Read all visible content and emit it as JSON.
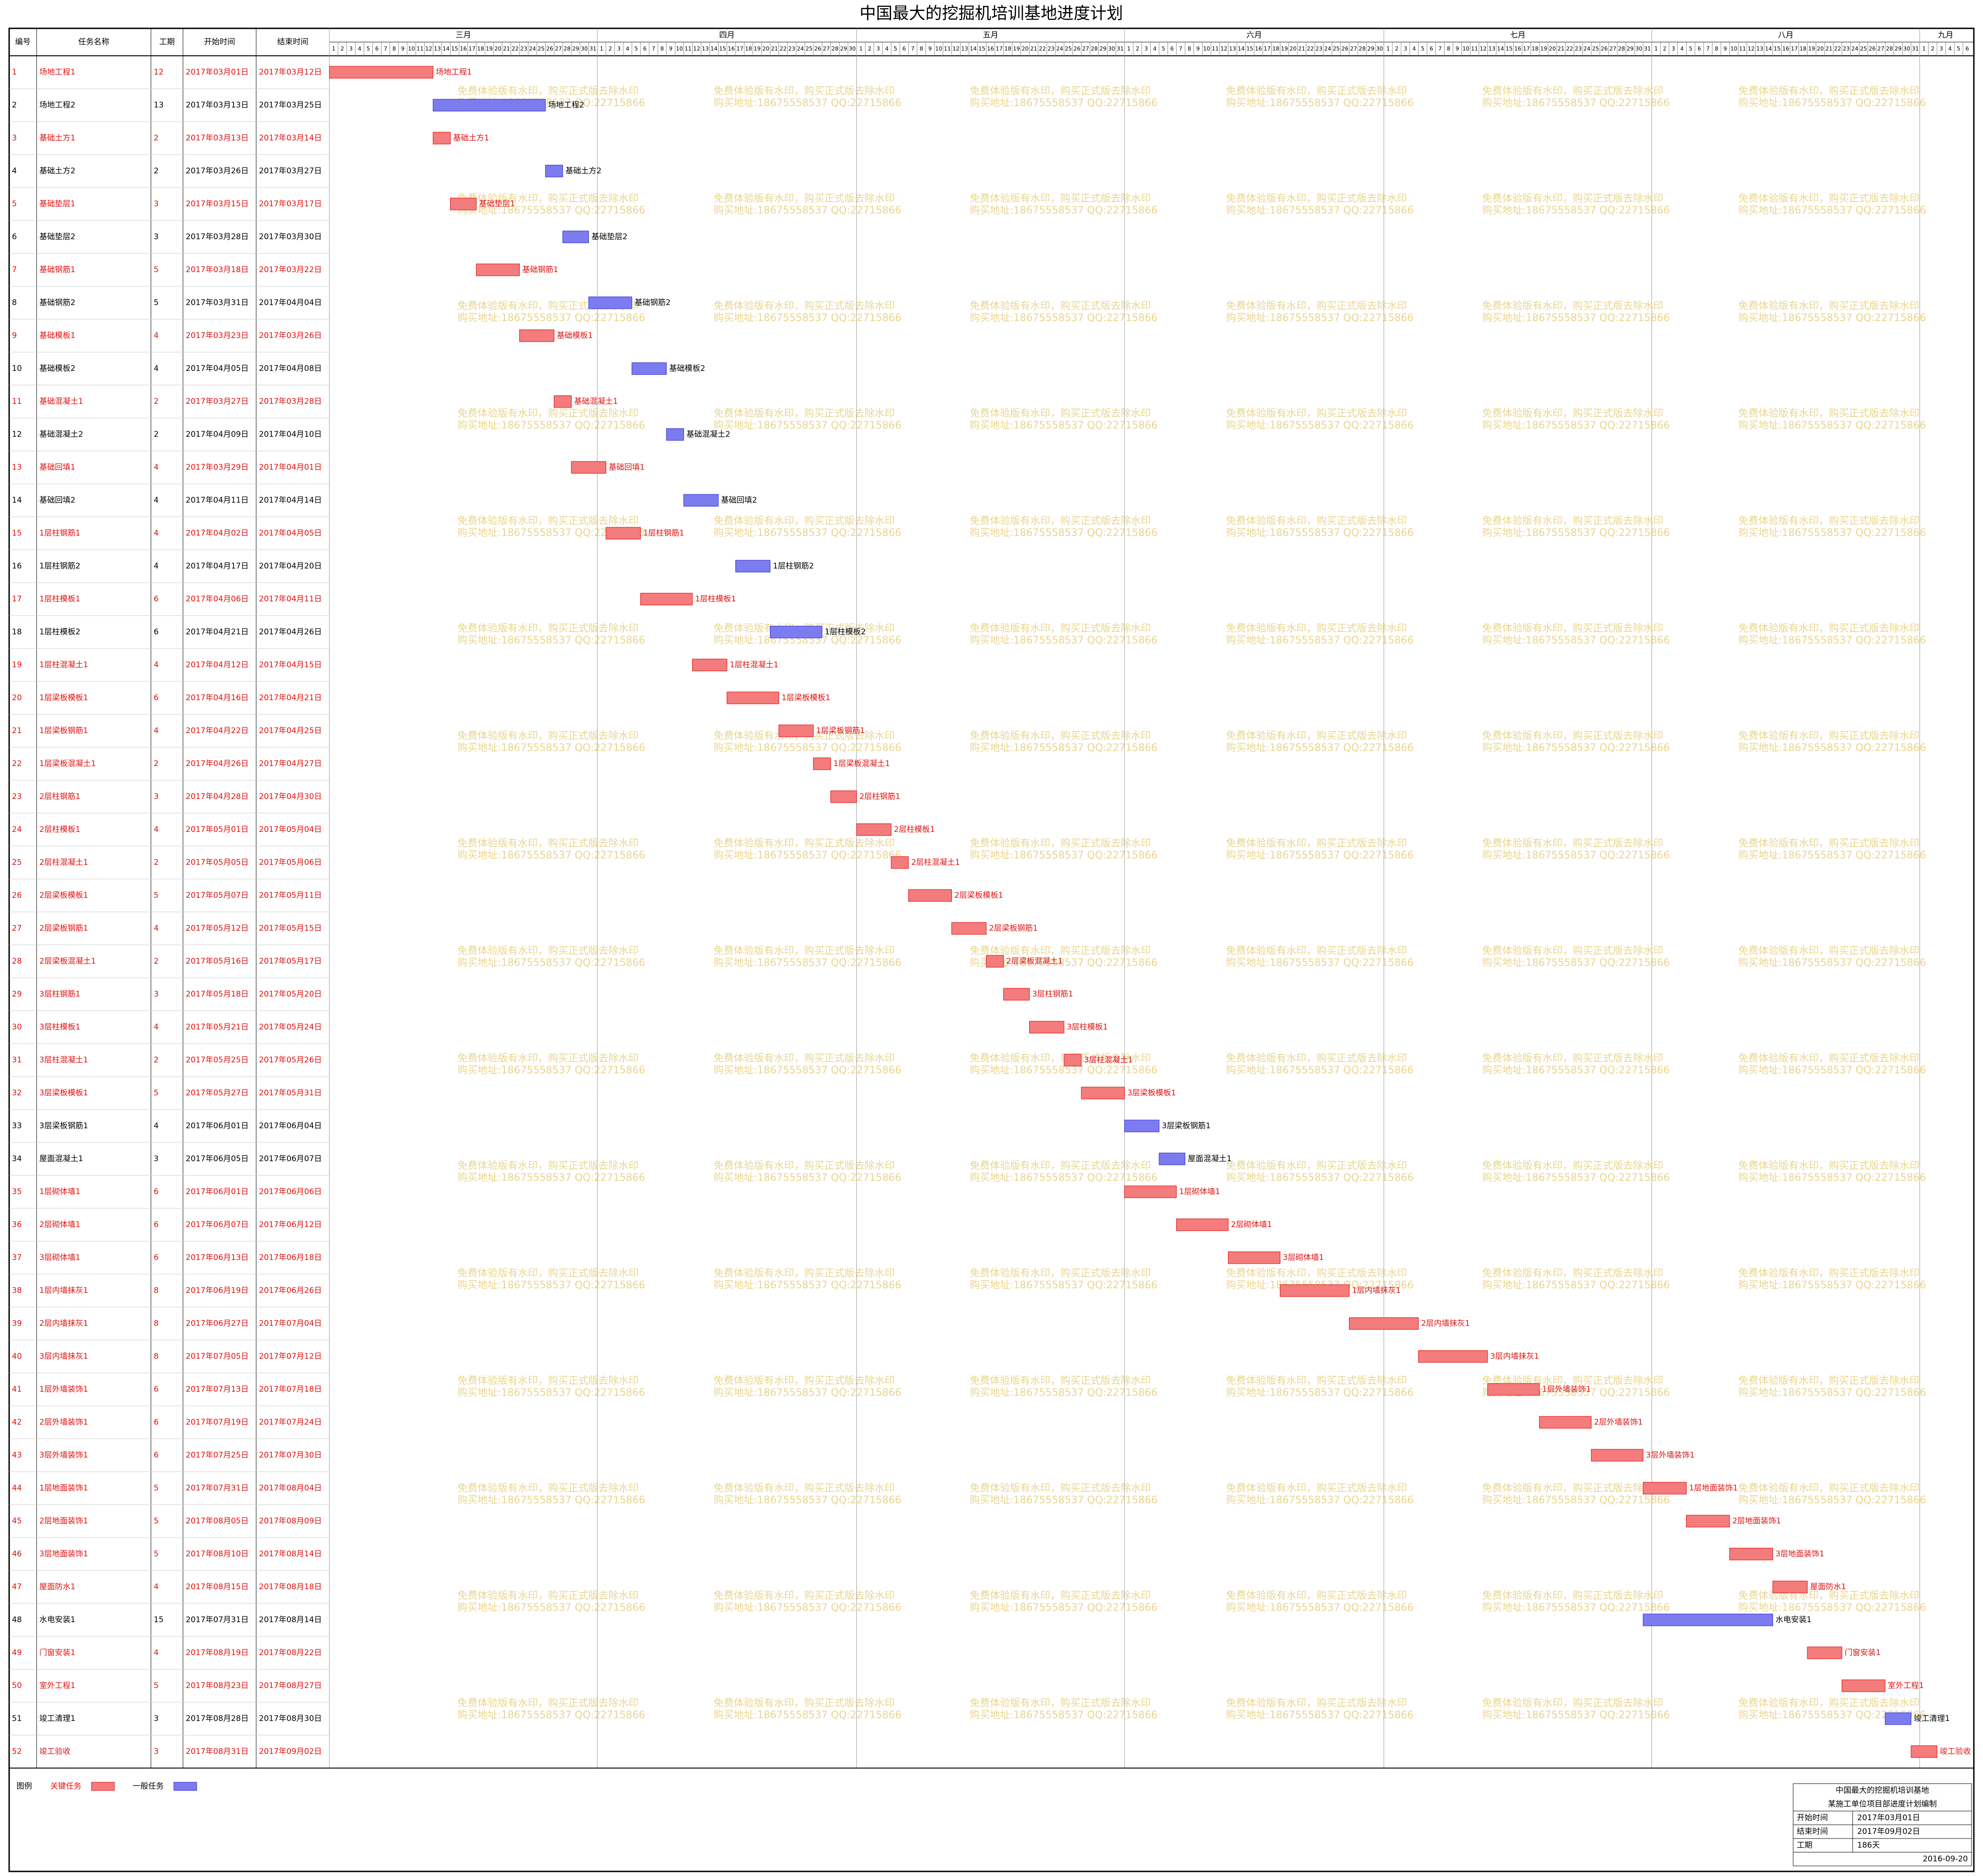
{
  "title": "中国最大的挖掘机培训基地进度计划",
  "columns": [
    "编号",
    "任务名称",
    "工期",
    "开始时间",
    "结束时间"
  ],
  "months": [
    {
      "name": "三月",
      "days": [
        1,
        2,
        3,
        4,
        5,
        6,
        7,
        8,
        9,
        10,
        11,
        12,
        13,
        14,
        15,
        16,
        17,
        18,
        19,
        20,
        21,
        22,
        23,
        24,
        25,
        26,
        27,
        28,
        29,
        30,
        31
      ]
    },
    {
      "name": "四月",
      "days": [
        1,
        2,
        3,
        4,
        5,
        6,
        7,
        8,
        9,
        10,
        11,
        12,
        13,
        14,
        15,
        16,
        17,
        18,
        19,
        20,
        21,
        22,
        23,
        24,
        25,
        26,
        27,
        28,
        29,
        30
      ]
    },
    {
      "name": "五月",
      "days": [
        1,
        2,
        3,
        4,
        5,
        6,
        7,
        8,
        9,
        10,
        11,
        12,
        13,
        14,
        15,
        16,
        17,
        18,
        19,
        20,
        21,
        22,
        23,
        24,
        25,
        26,
        27,
        28,
        29,
        30,
        31
      ]
    },
    {
      "name": "六月",
      "days": [
        1,
        2,
        3,
        4,
        5,
        6,
        7,
        8,
        9,
        10,
        11,
        12,
        13,
        14,
        15,
        16,
        17,
        18,
        19,
        20,
        21,
        22,
        23,
        24,
        25,
        26,
        27,
        28,
        29,
        30
      ]
    },
    {
      "name": "七月",
      "days": [
        1,
        2,
        3,
        4,
        5,
        6,
        7,
        8,
        9,
        10,
        11,
        12,
        13,
        14,
        15,
        16,
        17,
        18,
        19,
        20,
        21,
        22,
        23,
        24,
        25,
        26,
        27,
        28,
        29,
        30,
        31
      ]
    },
    {
      "name": "八月",
      "days": [
        1,
        2,
        3,
        4,
        5,
        6,
        7,
        8,
        9,
        10,
        11,
        12,
        13,
        14,
        15,
        16,
        17,
        18,
        19,
        20,
        21,
        22,
        23,
        24,
        25,
        26,
        27,
        28,
        29,
        30,
        31
      ]
    },
    {
      "name": "九月",
      "days": [
        1,
        2,
        3,
        4,
        5,
        6
      ]
    }
  ],
  "tasks": [
    {
      "id": 1,
      "name": "场地工程1",
      "duration": 12,
      "start": "2017年03月01日",
      "end": "2017年03月12日",
      "critical": true
    },
    {
      "id": 2,
      "name": "场地工程2",
      "duration": 13,
      "start": "2017年03月13日",
      "end": "2017年03月25日",
      "critical": false
    },
    {
      "id": 3,
      "name": "基础土方1",
      "duration": 2,
      "start": "2017年03月13日",
      "end": "2017年03月14日",
      "critical": true
    },
    {
      "id": 4,
      "name": "基础土方2",
      "duration": 2,
      "start": "2017年03月26日",
      "end": "2017年03月27日",
      "critical": false
    },
    {
      "id": 5,
      "name": "基础垫层1",
      "duration": 3,
      "start": "2017年03月15日",
      "end": "2017年03月17日",
      "critical": true
    },
    {
      "id": 6,
      "name": "基础垫层2",
      "duration": 3,
      "start": "2017年03月28日",
      "end": "2017年03月30日",
      "critical": false
    },
    {
      "id": 7,
      "name": "基础钢筋1",
      "duration": 5,
      "start": "2017年03月18日",
      "end": "2017年03月22日",
      "critical": true
    },
    {
      "id": 8,
      "name": "基础钢筋2",
      "duration": 5,
      "start": "2017年03月31日",
      "end": "2017年04月04日",
      "critical": false
    },
    {
      "id": 9,
      "name": "基础模板1",
      "duration": 4,
      "start": "2017年03月23日",
      "end": "2017年03月26日",
      "critical": true
    },
    {
      "id": 10,
      "name": "基础模板2",
      "duration": 4,
      "start": "2017年04月05日",
      "end": "2017年04月08日",
      "critical": false
    },
    {
      "id": 11,
      "name": "基础混凝土1",
      "duration": 2,
      "start": "2017年03月27日",
      "end": "2017年03月28日",
      "critical": true
    },
    {
      "id": 12,
      "name": "基础混凝土2",
      "duration": 2,
      "start": "2017年04月09日",
      "end": "2017年04月10日",
      "critical": false
    },
    {
      "id": 13,
      "name": "基础回填1",
      "duration": 4,
      "start": "2017年03月29日",
      "end": "2017年04月01日",
      "critical": true
    },
    {
      "id": 14,
      "name": "基础回填2",
      "duration": 4,
      "start": "2017年04月11日",
      "end": "2017年04月14日",
      "critical": false
    },
    {
      "id": 15,
      "name": "1层柱钢筋1",
      "duration": 4,
      "start": "2017年04月02日",
      "end": "2017年04月05日",
      "critical": true
    },
    {
      "id": 16,
      "name": "1层柱钢筋2",
      "duration": 4,
      "start": "2017年04月17日",
      "end": "2017年04月20日",
      "critical": false
    },
    {
      "id": 17,
      "name": "1层柱模板1",
      "duration": 6,
      "start": "2017年04月06日",
      "end": "2017年04月11日",
      "critical": true
    },
    {
      "id": 18,
      "name": "1层柱模板2",
      "duration": 6,
      "start": "2017年04月21日",
      "end": "2017年04月26日",
      "critical": false
    },
    {
      "id": 19,
      "name": "1层柱混凝土1",
      "duration": 4,
      "start": "2017年04月12日",
      "end": "2017年04月15日",
      "critical": true
    },
    {
      "id": 20,
      "name": "1层梁板模板1",
      "duration": 6,
      "start": "2017年04月16日",
      "end": "2017年04月21日",
      "critical": true
    },
    {
      "id": 21,
      "name": "1层梁板钢筋1",
      "duration": 4,
      "start": "2017年04月22日",
      "end": "2017年04月25日",
      "critical": true
    },
    {
      "id": 22,
      "name": "1层梁板混凝土1",
      "duration": 2,
      "start": "2017年04月26日",
      "end": "2017年04月27日",
      "critical": true
    },
    {
      "id": 23,
      "name": "2层柱钢筋1",
      "duration": 3,
      "start": "2017年04月28日",
      "end": "2017年04月30日",
      "critical": true
    },
    {
      "id": 24,
      "name": "2层柱模板1",
      "duration": 4,
      "start": "2017年05月01日",
      "end": "2017年05月04日",
      "critical": true
    },
    {
      "id": 25,
      "name": "2层柱混凝土1",
      "duration": 2,
      "start": "2017年05月05日",
      "end": "2017年05月06日",
      "critical": true
    },
    {
      "id": 26,
      "name": "2层梁板模板1",
      "duration": 5,
      "start": "2017年05月07日",
      "end": "2017年05月11日",
      "critical": true
    },
    {
      "id": 27,
      "name": "2层梁板钢筋1",
      "duration": 4,
      "start": "2017年05月12日",
      "end": "2017年05月15日",
      "critical": true
    },
    {
      "id": 28,
      "name": "2层梁板混凝土1",
      "duration": 2,
      "start": "2017年05月16日",
      "end": "2017年05月17日",
      "critical": true
    },
    {
      "id": 29,
      "name": "3层柱钢筋1",
      "duration": 3,
      "start": "2017年05月18日",
      "end": "2017年05月20日",
      "critical": true
    },
    {
      "id": 30,
      "name": "3层柱模板1",
      "duration": 4,
      "start": "2017年05月21日",
      "end": "2017年05月24日",
      "critical": true
    },
    {
      "id": 31,
      "name": "3层柱混凝土1",
      "duration": 2,
      "start": "2017年05月25日",
      "end": "2017年05月26日",
      "critical": true
    },
    {
      "id": 32,
      "name": "3层梁板模板1",
      "duration": 5,
      "start": "2017年05月27日",
      "end": "2017年05月31日",
      "critical": true
    },
    {
      "id": 33,
      "name": "3层梁板钢筋1",
      "duration": 4,
      "start": "2017年06月01日",
      "end": "2017年06月04日",
      "critical": false
    },
    {
      "id": 34,
      "name": "屋面混凝土1",
      "duration": 3,
      "start": "2017年06月05日",
      "end": "2017年06月07日",
      "critical": false
    },
    {
      "id": 35,
      "name": "1层砌体墙1",
      "duration": 6,
      "start": "2017年06月01日",
      "end": "2017年06月06日",
      "critical": true
    },
    {
      "id": 36,
      "name": "2层砌体墙1",
      "duration": 6,
      "start": "2017年06月07日",
      "end": "2017年06月12日",
      "critical": true
    },
    {
      "id": 37,
      "name": "3层砌体墙1",
      "duration": 6,
      "start": "2017年06月13日",
      "end": "2017年06月18日",
      "critical": true
    },
    {
      "id": 38,
      "name": "1层内墙抹灰1",
      "duration": 8,
      "start": "2017年06月19日",
      "end": "2017年06月26日",
      "critical": true
    },
    {
      "id": 39,
      "name": "2层内墙抹灰1",
      "duration": 8,
      "start": "2017年06月27日",
      "end": "2017年07月04日",
      "critical": true
    },
    {
      "id": 40,
      "name": "3层内墙抹灰1",
      "duration": 8,
      "start": "2017年07月05日",
      "end": "2017年07月12日",
      "critical": true
    },
    {
      "id": 41,
      "name": "1层外墙装饰1",
      "duration": 6,
      "start": "2017年07月13日",
      "end": "2017年07月18日",
      "critical": true
    },
    {
      "id": 42,
      "name": "2层外墙装饰1",
      "duration": 6,
      "start": "2017年07月19日",
      "end": "2017年07月24日",
      "critical": true
    },
    {
      "id": 43,
      "name": "3层外墙装饰1",
      "duration": 6,
      "start": "2017年07月25日",
      "end": "2017年07月30日",
      "critical": true
    },
    {
      "id": 44,
      "name": "1层地面装饰1",
      "duration": 5,
      "start": "2017年07月31日",
      "end": "2017年08月04日",
      "critical": true
    },
    {
      "id": 45,
      "name": "2层地面装饰1",
      "duration": 5,
      "start": "2017年08月05日",
      "end": "2017年08月09日",
      "critical": true
    },
    {
      "id": 46,
      "name": "3层地面装饰1",
      "duration": 5,
      "start": "2017年08月10日",
      "end": "2017年08月14日",
      "critical": true
    },
    {
      "id": 47,
      "name": "屋面防水1",
      "duration": 4,
      "start": "2017年08月15日",
      "end": "2017年08月18日",
      "critical": true
    },
    {
      "id": 48,
      "name": "水电安装1",
      "duration": 15,
      "start": "2017年07月31日",
      "end": "2017年08月14日",
      "critical": false
    },
    {
      "id": 49,
      "name": "门窗安装1",
      "duration": 4,
      "start": "2017年08月19日",
      "end": "2017年08月22日",
      "critical": true
    },
    {
      "id": 50,
      "name": "室外工程1",
      "duration": 5,
      "start": "2017年08月23日",
      "end": "2017年08月27日",
      "critical": true
    },
    {
      "id": 51,
      "name": "竣工清理1",
      "duration": 3,
      "start": "2017年08月28日",
      "end": "2017年08月30日",
      "critical": false
    },
    {
      "id": 52,
      "name": "竣工验收",
      "duration": 3,
      "start": "2017年08月31日",
      "end": "2017年09月02日",
      "critical": true
    }
  ],
  "watermark": [
    "免费体验版有水印，购买正式版去除水印",
    "购买地址:18675558537 QQ:22715866"
  ],
  "legend": {
    "title": "图例",
    "critical": "关键任务",
    "normal": "一般任务"
  },
  "info": {
    "title": "中国最大的挖掘机培训基地",
    "subtitle": "某施工单位项目部进度计划编制",
    "fields": [
      [
        "开始时间",
        "2017年03月01日"
      ],
      [
        "结束时间",
        "2017年09月02日"
      ],
      [
        "工期",
        "186天"
      ]
    ],
    "date": "2016-09-20"
  }
}
